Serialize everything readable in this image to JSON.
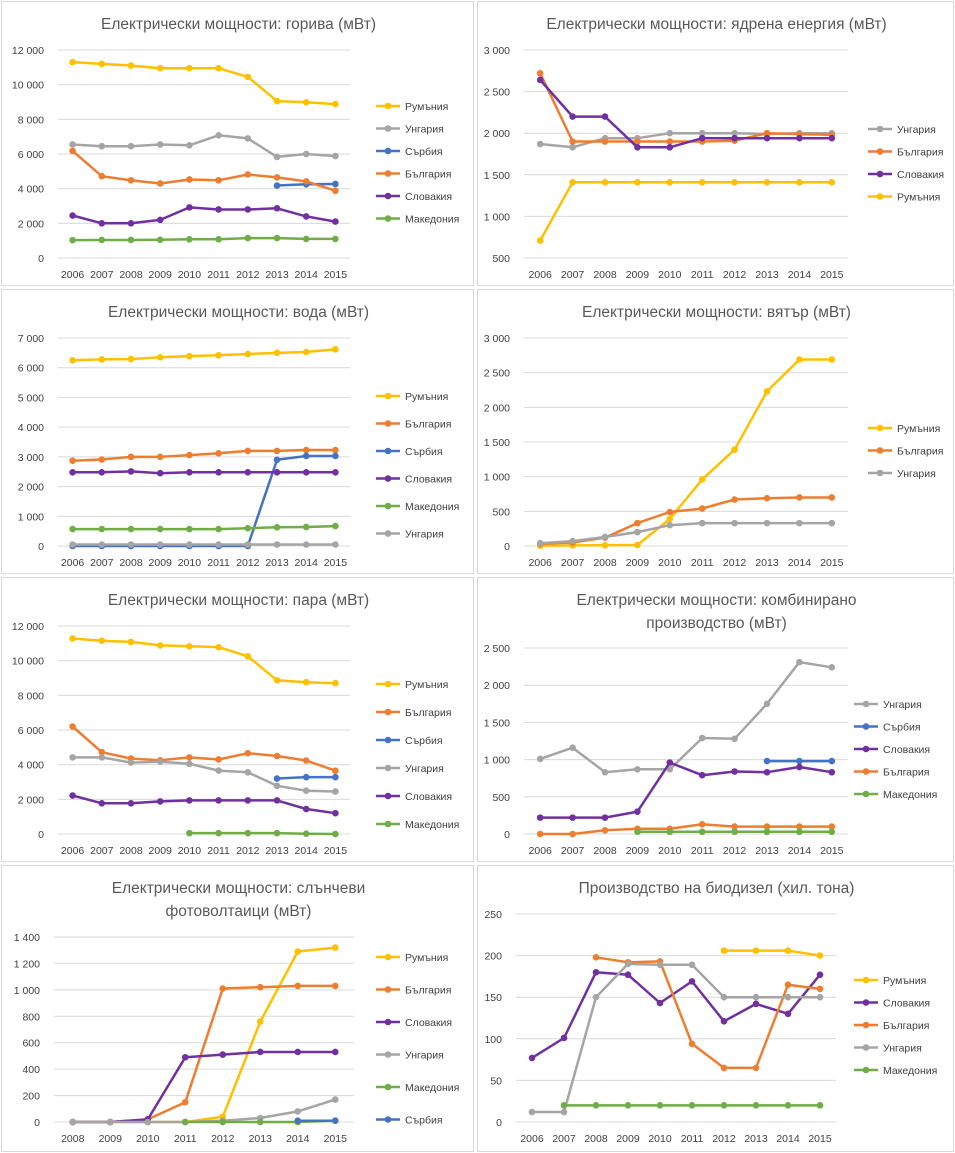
{
  "colors": {
    "Румъния": "#ffc000",
    "Унгария": "#a5a5a5",
    "Сърбия": "#4472c4",
    "България": "#ed7d31",
    "Словакия": "#7030a0",
    "Македония": "#70ad47"
  },
  "chart_data": [
    {
      "type": "line",
      "title": "Електрически мощности: горива (мВт)",
      "x": [
        "2006",
        "2007",
        "2008",
        "2009",
        "2010",
        "2011",
        "2012",
        "2013",
        "2014",
        "2015"
      ],
      "ylim": [
        0,
        12000
      ],
      "yticks": [
        "0",
        "2 000",
        "4 000",
        "6 000",
        "8 000",
        "10 000",
        "12 000"
      ],
      "ytick_values": [
        0,
        2000,
        4000,
        6000,
        8000,
        10000,
        12000
      ],
      "legend_position": "right",
      "series": [
        {
          "name": "Румъния",
          "values": [
            11300,
            11200,
            11100,
            10950,
            10950,
            10950,
            10450,
            9050,
            8980,
            8880
          ]
        },
        {
          "name": "Унгария",
          "values": [
            6550,
            6450,
            6450,
            6550,
            6500,
            7080,
            6900,
            5830,
            6000,
            5880
          ]
        },
        {
          "name": "Сърбия",
          "values": [
            null,
            null,
            null,
            null,
            null,
            null,
            null,
            4180,
            4250,
            4270
          ]
        },
        {
          "name": "България",
          "values": [
            6180,
            4720,
            4480,
            4300,
            4530,
            4480,
            4820,
            4650,
            4420,
            3880
          ]
        },
        {
          "name": "Словакия",
          "values": [
            2450,
            2000,
            2000,
            2200,
            2920,
            2800,
            2800,
            2870,
            2400,
            2100
          ]
        },
        {
          "name": "Македония",
          "values": [
            1030,
            1040,
            1040,
            1050,
            1080,
            1080,
            1150,
            1150,
            1100,
            1100
          ]
        }
      ]
    },
    {
      "type": "line",
      "title": "Електрически мощности: ядрена енергия (мВт)",
      "x": [
        "2006",
        "2007",
        "2008",
        "2009",
        "2010",
        "2011",
        "2012",
        "2013",
        "2014",
        "2015"
      ],
      "ylim": [
        500,
        3000
      ],
      "yticks": [
        "500",
        "1 000",
        "1 500",
        "2 000",
        "2 500",
        "3 000"
      ],
      "ytick_values": [
        500,
        1000,
        1500,
        2000,
        2500,
        3000
      ],
      "legend_position": "right",
      "series": [
        {
          "name": "Унгария",
          "values": [
            1870,
            1830,
            1940,
            1940,
            2000,
            2000,
            2000,
            1990,
            2000,
            2000
          ]
        },
        {
          "name": "България",
          "values": [
            2720,
            1900,
            1900,
            1900,
            1900,
            1900,
            1910,
            2000,
            1990,
            1980
          ]
        },
        {
          "name": "Словакия",
          "values": [
            2640,
            2200,
            2200,
            1830,
            1830,
            1940,
            1940,
            1940,
            1940,
            1940
          ]
        },
        {
          "name": "Румъния",
          "values": [
            710,
            1410,
            1410,
            1410,
            1410,
            1410,
            1410,
            1410,
            1410,
            1410
          ]
        }
      ]
    },
    {
      "type": "line",
      "title": "Електрически мощности: вода (мВт)",
      "x": [
        "2006",
        "2007",
        "2008",
        "2009",
        "2010",
        "2011",
        "2012",
        "2013",
        "2014",
        "2015"
      ],
      "ylim": [
        0,
        7000
      ],
      "yticks": [
        "0",
        "1 000",
        "2 000",
        "3 000",
        "4 000",
        "5 000",
        "6 000",
        "7 000"
      ],
      "ytick_values": [
        0,
        1000,
        2000,
        3000,
        4000,
        5000,
        6000,
        7000
      ],
      "legend_position": "right",
      "series": [
        {
          "name": "Румъния",
          "values": [
            6250,
            6280,
            6290,
            6350,
            6390,
            6420,
            6460,
            6500,
            6530,
            6620
          ]
        },
        {
          "name": "България",
          "values": [
            2870,
            2910,
            3000,
            3000,
            3060,
            3120,
            3200,
            3200,
            3230,
            3230
          ]
        },
        {
          "name": "Сърбия",
          "values": [
            0,
            0,
            0,
            0,
            0,
            0,
            0,
            2900,
            3030,
            3030
          ]
        },
        {
          "name": "Словакия",
          "values": [
            2480,
            2480,
            2510,
            2450,
            2480,
            2480,
            2480,
            2480,
            2480,
            2480
          ]
        },
        {
          "name": "Македония",
          "values": [
            570,
            570,
            570,
            570,
            570,
            570,
            600,
            630,
            640,
            670
          ]
        },
        {
          "name": "Унгария",
          "values": [
            50,
            50,
            50,
            50,
            50,
            50,
            50,
            50,
            50,
            50
          ]
        }
      ]
    },
    {
      "type": "line",
      "title": "Електрически мощности: вятър (мВт)",
      "x": [
        "2006",
        "2007",
        "2008",
        "2009",
        "2010",
        "2011",
        "2012",
        "2013",
        "2014",
        "2015"
      ],
      "ylim": [
        0,
        3000
      ],
      "yticks": [
        "0",
        "500",
        "1 000",
        "1 500",
        "2 000",
        "2 500",
        "3 000"
      ],
      "ytick_values": [
        0,
        500,
        1000,
        1500,
        2000,
        2500,
        3000
      ],
      "legend_position": "right",
      "series": [
        {
          "name": "Румъния",
          "values": [
            3,
            8,
            10,
            14,
            390,
            960,
            1390,
            2230,
            2690,
            2690
          ]
        },
        {
          "name": "България",
          "values": [
            30,
            50,
            120,
            330,
            490,
            540,
            670,
            690,
            700,
            700
          ]
        },
        {
          "name": "Унгария",
          "values": [
            40,
            70,
            130,
            200,
            300,
            330,
            330,
            330,
            330,
            330
          ]
        }
      ]
    },
    {
      "type": "line",
      "title": "Електрически мощности: пара (мВт)",
      "x": [
        "2006",
        "2007",
        "2008",
        "2009",
        "2010",
        "2011",
        "2012",
        "2013",
        "2014",
        "2015"
      ],
      "ylim": [
        0,
        12000
      ],
      "yticks": [
        "0",
        "2 000",
        "4 000",
        "6 000",
        "8 000",
        "10 000",
        "12 000"
      ],
      "ytick_values": [
        0,
        2000,
        4000,
        6000,
        8000,
        10000,
        12000
      ],
      "legend_position": "right",
      "series": [
        {
          "name": "Румъния",
          "values": [
            11280,
            11150,
            11080,
            10880,
            10830,
            10780,
            10250,
            8870,
            8760,
            8700
          ]
        },
        {
          "name": "България",
          "values": [
            6200,
            4720,
            4350,
            4250,
            4420,
            4300,
            4660,
            4500,
            4240,
            3650
          ]
        },
        {
          "name": "Сърбия",
          "values": [
            null,
            null,
            null,
            null,
            null,
            null,
            null,
            3200,
            3280,
            3280
          ]
        },
        {
          "name": "Унгария",
          "values": [
            4420,
            4420,
            4120,
            4170,
            4050,
            3660,
            3560,
            2780,
            2500,
            2450
          ]
        },
        {
          "name": "Словакия",
          "values": [
            2220,
            1770,
            1770,
            1880,
            1940,
            1940,
            1940,
            1940,
            1440,
            1200
          ]
        },
        {
          "name": "Македония",
          "values": [
            null,
            null,
            null,
            null,
            50,
            50,
            50,
            50,
            20,
            0
          ]
        }
      ]
    },
    {
      "type": "line",
      "title": "Електрически мощности: комбинирано производство (мВт)",
      "title_lines": [
        "Електрически мощности: комбинирано",
        "производство (мВт)"
      ],
      "x": [
        "2006",
        "2007",
        "2008",
        "2009",
        "2010",
        "2011",
        "2012",
        "2013",
        "2014",
        "2015"
      ],
      "ylim": [
        0,
        2500
      ],
      "yticks": [
        "0",
        "500",
        "1 000",
        "1 500",
        "2 000",
        "2 500"
      ],
      "ytick_values": [
        0,
        500,
        1000,
        1500,
        2000,
        2500
      ],
      "legend_position": "right",
      "series": [
        {
          "name": "Унгария",
          "values": [
            1010,
            1160,
            830,
            870,
            870,
            1290,
            1280,
            1750,
            2310,
            2240
          ]
        },
        {
          "name": "Сърбия",
          "values": [
            null,
            null,
            null,
            null,
            null,
            null,
            null,
            980,
            980,
            980
          ]
        },
        {
          "name": "Словакия",
          "values": [
            220,
            220,
            220,
            300,
            960,
            790,
            840,
            830,
            900,
            830
          ]
        },
        {
          "name": "България",
          "values": [
            0,
            0,
            50,
            70,
            70,
            130,
            100,
            100,
            100,
            100
          ]
        },
        {
          "name": "Македония",
          "values": [
            null,
            null,
            null,
            30,
            30,
            30,
            30,
            30,
            30,
            30
          ]
        }
      ]
    },
    {
      "type": "line",
      "title": "Електрически мощности: слънчеви фотоволтаици (мВт)",
      "title_lines": [
        "Електрически мощности: слънчеви",
        "фотоволтаици (мВт)"
      ],
      "x": [
        "2008",
        "2009",
        "2010",
        "2011",
        "2012",
        "2013",
        "2014",
        "2015"
      ],
      "ylim": [
        0,
        1400
      ],
      "yticks": [
        "0",
        "200",
        "400",
        "600",
        "800",
        "1 000",
        "1 200",
        "1 400"
      ],
      "ytick_values": [
        0,
        200,
        400,
        600,
        800,
        1000,
        1200,
        1400
      ],
      "legend_position": "right",
      "series": [
        {
          "name": "Румъния",
          "values": [
            0,
            0,
            0,
            0,
            40,
            760,
            1290,
            1320
          ]
        },
        {
          "name": "България",
          "values": [
            0,
            0,
            20,
            150,
            1010,
            1020,
            1030,
            1030
          ]
        },
        {
          "name": "Словакия",
          "values": [
            0,
            0,
            20,
            490,
            510,
            530,
            530,
            530
          ]
        },
        {
          "name": "Унгария",
          "values": [
            0,
            0,
            0,
            0,
            10,
            30,
            80,
            170
          ]
        },
        {
          "name": "Македония",
          "values": [
            null,
            null,
            null,
            0,
            0,
            0,
            0,
            10
          ]
        },
        {
          "name": "Сърбия",
          "values": [
            null,
            null,
            null,
            null,
            null,
            null,
            10,
            10
          ]
        }
      ]
    },
    {
      "type": "line",
      "title": "Производство на биодизел (хил. тона)",
      "x": [
        "2006",
        "2007",
        "2008",
        "2009",
        "2010",
        "2011",
        "2012",
        "2013",
        "2014",
        "2015"
      ],
      "ylim": [
        0,
        250
      ],
      "yticks": [
        "0",
        "50",
        "100",
        "150",
        "200",
        "250"
      ],
      "ytick_values": [
        0,
        50,
        100,
        150,
        200,
        250
      ],
      "legend_position": "right",
      "series": [
        {
          "name": "Румъния",
          "values": [
            null,
            null,
            null,
            null,
            null,
            null,
            206,
            206,
            206,
            200
          ]
        },
        {
          "name": "Словакия",
          "values": [
            77,
            101,
            180,
            177,
            143,
            169,
            121,
            142,
            130,
            177
          ]
        },
        {
          "name": "България",
          "values": [
            null,
            null,
            198,
            192,
            193,
            94,
            65,
            65,
            165,
            160
          ]
        },
        {
          "name": "Унгария",
          "values": [
            12,
            12,
            150,
            190,
            189,
            189,
            150,
            150,
            150,
            150
          ]
        },
        {
          "name": "Македония",
          "values": [
            null,
            20,
            20,
            20,
            20,
            20,
            20,
            20,
            20,
            20
          ]
        }
      ]
    }
  ]
}
